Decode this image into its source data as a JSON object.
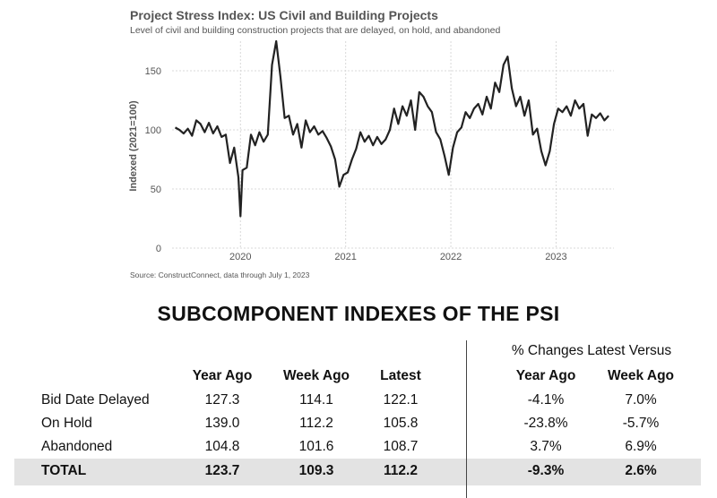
{
  "chart_data": {
    "type": "line",
    "title": "Project Stress Index: US Civil and Building Projects",
    "subtitle": "Level of civil and building construction projects that are delayed, on hold, and abandoned",
    "ylabel": "Indexed (2021=100)",
    "xlabel": "",
    "source": "Source: ConstructConnect, data through July 1, 2023",
    "ylim": [
      0,
      175
    ],
    "yticks": [
      0,
      50,
      100,
      150
    ],
    "xlim": [
      2019.35,
      2023.55
    ],
    "xticks": [
      2020,
      2021,
      2022,
      2023
    ],
    "xtick_labels": [
      "2020",
      "2021",
      "2022",
      "2023"
    ],
    "grid": true,
    "series": [
      {
        "color": "#222222",
        "x": [
          2019.38,
          2019.42,
          2019.46,
          2019.5,
          2019.54,
          2019.58,
          2019.62,
          2019.66,
          2019.7,
          2019.74,
          2019.78,
          2019.82,
          2019.86,
          2019.9,
          2019.94,
          2019.98,
          2020.0,
          2020.02,
          2020.06,
          2020.1,
          2020.14,
          2020.18,
          2020.22,
          2020.26,
          2020.3,
          2020.34,
          2020.38,
          2020.42,
          2020.46,
          2020.5,
          2020.54,
          2020.58,
          2020.62,
          2020.66,
          2020.7,
          2020.74,
          2020.78,
          2020.82,
          2020.86,
          2020.9,
          2020.94,
          2020.98,
          2021.02,
          2021.06,
          2021.1,
          2021.14,
          2021.18,
          2021.22,
          2021.26,
          2021.3,
          2021.34,
          2021.38,
          2021.42,
          2021.46,
          2021.5,
          2021.54,
          2021.58,
          2021.62,
          2021.66,
          2021.7,
          2021.74,
          2021.78,
          2021.82,
          2021.86,
          2021.9,
          2021.94,
          2021.98,
          2022.02,
          2022.06,
          2022.1,
          2022.14,
          2022.18,
          2022.22,
          2022.26,
          2022.3,
          2022.34,
          2022.38,
          2022.42,
          2022.46,
          2022.5,
          2022.54,
          2022.58,
          2022.62,
          2022.66,
          2022.7,
          2022.74,
          2022.78,
          2022.82,
          2022.86,
          2022.9,
          2022.94,
          2022.98,
          2023.02,
          2023.06,
          2023.1,
          2023.14,
          2023.18,
          2023.22,
          2023.26,
          2023.3,
          2023.34,
          2023.38,
          2023.42,
          2023.46,
          2023.5
        ],
        "values": [
          102,
          100,
          97,
          101,
          95,
          108,
          105,
          98,
          106,
          97,
          103,
          94,
          96,
          72,
          85,
          60,
          27,
          66,
          68,
          96,
          87,
          98,
          90,
          96,
          155,
          175,
          145,
          110,
          112,
          96,
          105,
          85,
          108,
          98,
          103,
          96,
          99,
          93,
          86,
          75,
          52,
          62,
          64,
          75,
          84,
          98,
          90,
          95,
          87,
          94,
          88,
          92,
          100,
          118,
          105,
          120,
          112,
          125,
          100,
          132,
          128,
          120,
          115,
          98,
          92,
          78,
          62,
          85,
          98,
          102,
          115,
          110,
          118,
          122,
          113,
          128,
          118,
          140,
          132,
          155,
          162,
          135,
          120,
          128,
          112,
          125,
          96,
          101,
          82,
          70,
          82,
          105,
          118,
          115,
          120,
          112,
          125,
          118,
          122,
          95,
          113,
          110,
          114,
          108,
          112
        ]
      }
    ]
  },
  "table": {
    "heading": "SUBCOMPONENT INDEXES OF THE PSI",
    "pct_heading": "% Changes Latest Versus",
    "columns": [
      "Year Ago",
      "Week Ago",
      "Latest"
    ],
    "pct_columns": [
      "Year Ago",
      "Week Ago"
    ],
    "rows": [
      {
        "label": "Bid Date Delayed",
        "values": [
          "127.3",
          "114.1",
          "122.1"
        ],
        "pct": [
          "-4.1%",
          "7.0%"
        ]
      },
      {
        "label": "On Hold",
        "values": [
          "139.0",
          "112.2",
          "105.8"
        ],
        "pct": [
          "-23.8%",
          "-5.7%"
        ]
      },
      {
        "label": "Abandoned",
        "values": [
          "104.8",
          "101.6",
          "108.7"
        ],
        "pct": [
          "3.7%",
          "6.9%"
        ]
      },
      {
        "label": "TOTAL",
        "values": [
          "123.7",
          "109.3",
          "112.2"
        ],
        "pct": [
          "-9.3%",
          "2.6%"
        ]
      }
    ]
  }
}
